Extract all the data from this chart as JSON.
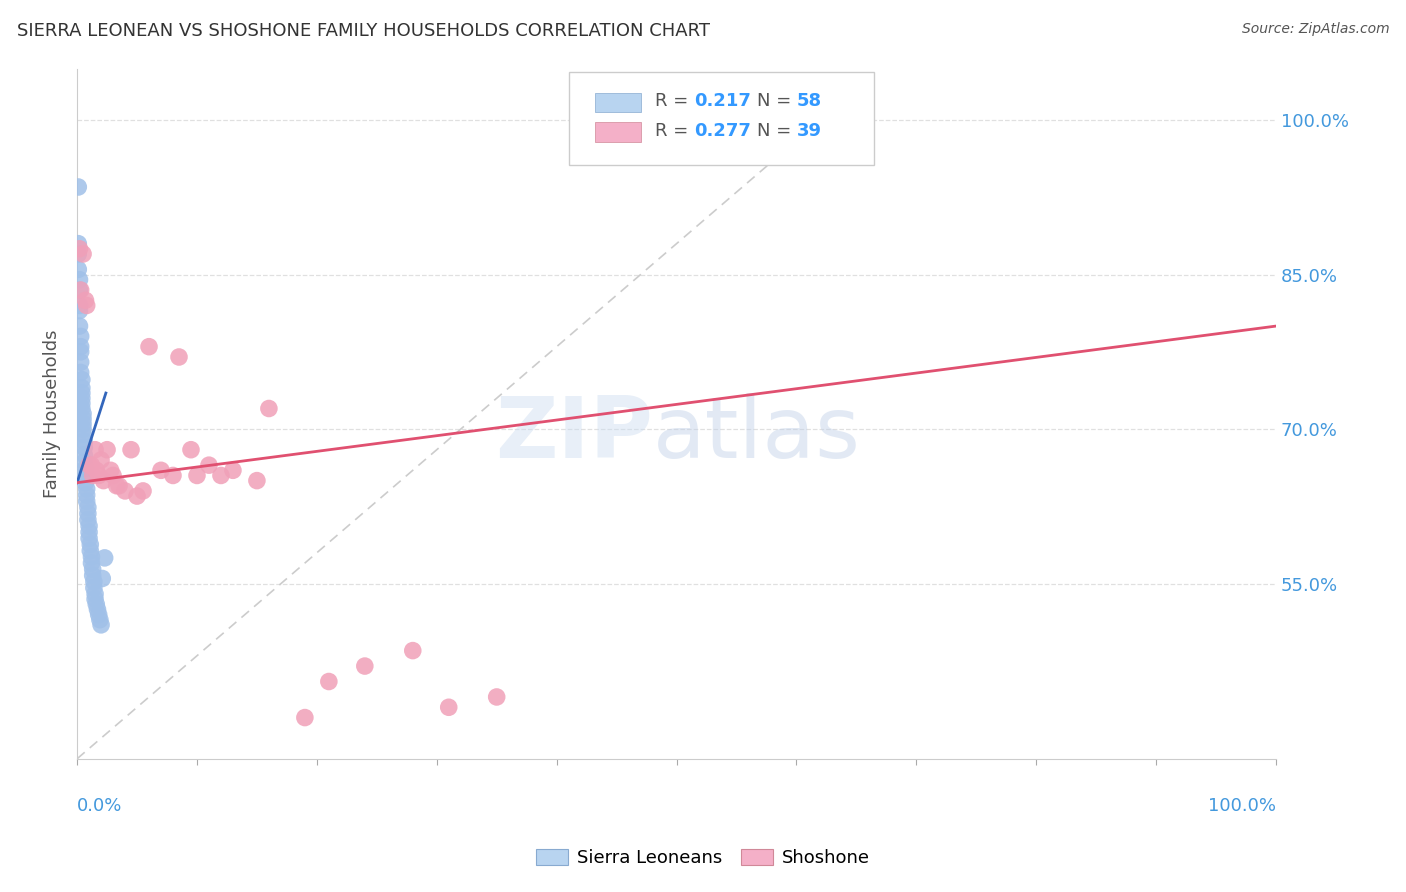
{
  "title": "SIERRA LEONEAN VS SHOSHONE FAMILY HOUSEHOLDS CORRELATION CHART",
  "source": "Source: ZipAtlas.com",
  "ylabel": "Family Households",
  "y_tick_values": [
    0.55,
    0.7,
    0.85,
    1.0
  ],
  "y_tick_labels": [
    "55.0%",
    "70.0%",
    "85.0%",
    "100.0%"
  ],
  "x_range": [
    0.0,
    1.0
  ],
  "y_range": [
    0.38,
    1.05
  ],
  "sierra_leoneans": {
    "color": "#a0c0e8",
    "trend_color": "#3366bb",
    "x": [
      0.001,
      0.001,
      0.001,
      0.001,
      0.002,
      0.002,
      0.002,
      0.002,
      0.002,
      0.003,
      0.003,
      0.003,
      0.003,
      0.003,
      0.004,
      0.004,
      0.004,
      0.004,
      0.004,
      0.004,
      0.005,
      0.005,
      0.005,
      0.005,
      0.005,
      0.006,
      0.006,
      0.006,
      0.006,
      0.007,
      0.007,
      0.007,
      0.008,
      0.008,
      0.008,
      0.009,
      0.009,
      0.009,
      0.01,
      0.01,
      0.01,
      0.011,
      0.011,
      0.012,
      0.012,
      0.013,
      0.013,
      0.014,
      0.014,
      0.015,
      0.015,
      0.016,
      0.017,
      0.018,
      0.019,
      0.02,
      0.021,
      0.023
    ],
    "y": [
      0.935,
      0.88,
      0.87,
      0.855,
      0.845,
      0.835,
      0.82,
      0.815,
      0.8,
      0.79,
      0.78,
      0.775,
      0.765,
      0.755,
      0.748,
      0.74,
      0.735,
      0.73,
      0.725,
      0.72,
      0.715,
      0.71,
      0.705,
      0.7,
      0.695,
      0.688,
      0.682,
      0.675,
      0.668,
      0.662,
      0.656,
      0.648,
      0.642,
      0.636,
      0.63,
      0.624,
      0.618,
      0.612,
      0.606,
      0.6,
      0.594,
      0.588,
      0.582,
      0.576,
      0.57,
      0.564,
      0.558,
      0.552,
      0.546,
      0.54,
      0.535,
      0.53,
      0.525,
      0.52,
      0.515,
      0.51,
      0.555,
      0.575
    ],
    "trend_x_start": 0.0,
    "trend_x_end": 0.024,
    "trend_y_start": 0.648,
    "trend_y_end": 0.735
  },
  "shoshone": {
    "color": "#f0a0b8",
    "trend_color": "#e05070",
    "x": [
      0.002,
      0.003,
      0.005,
      0.007,
      0.008,
      0.01,
      0.012,
      0.013,
      0.015,
      0.016,
      0.018,
      0.02,
      0.022,
      0.025,
      0.028,
      0.03,
      0.033,
      0.035,
      0.04,
      0.045,
      0.05,
      0.055,
      0.06,
      0.07,
      0.08,
      0.085,
      0.095,
      0.1,
      0.11,
      0.12,
      0.13,
      0.15,
      0.16,
      0.19,
      0.21,
      0.24,
      0.28,
      0.31,
      0.35
    ],
    "y": [
      0.875,
      0.835,
      0.87,
      0.825,
      0.82,
      0.665,
      0.665,
      0.655,
      0.68,
      0.66,
      0.655,
      0.67,
      0.65,
      0.68,
      0.66,
      0.655,
      0.645,
      0.645,
      0.64,
      0.68,
      0.635,
      0.64,
      0.78,
      0.66,
      0.655,
      0.77,
      0.68,
      0.655,
      0.665,
      0.655,
      0.66,
      0.65,
      0.72,
      0.42,
      0.455,
      0.47,
      0.485,
      0.43,
      0.44
    ],
    "trend_x_start": 0.0,
    "trend_x_end": 1.0,
    "trend_y_start": 0.648,
    "trend_y_end": 0.8
  },
  "reference_line": {
    "x": [
      0.0,
      0.65
    ],
    "y": [
      0.38,
      1.03
    ],
    "color": "#cccccc",
    "linestyle": "--"
  },
  "background_color": "#ffffff",
  "grid_color": "#e0e0e0",
  "legend_box": {
    "sl_patch_color": "#b8d4f0",
    "sh_patch_color": "#f4b0c8",
    "text_color": "#555555",
    "value_color": "#3399ff"
  }
}
